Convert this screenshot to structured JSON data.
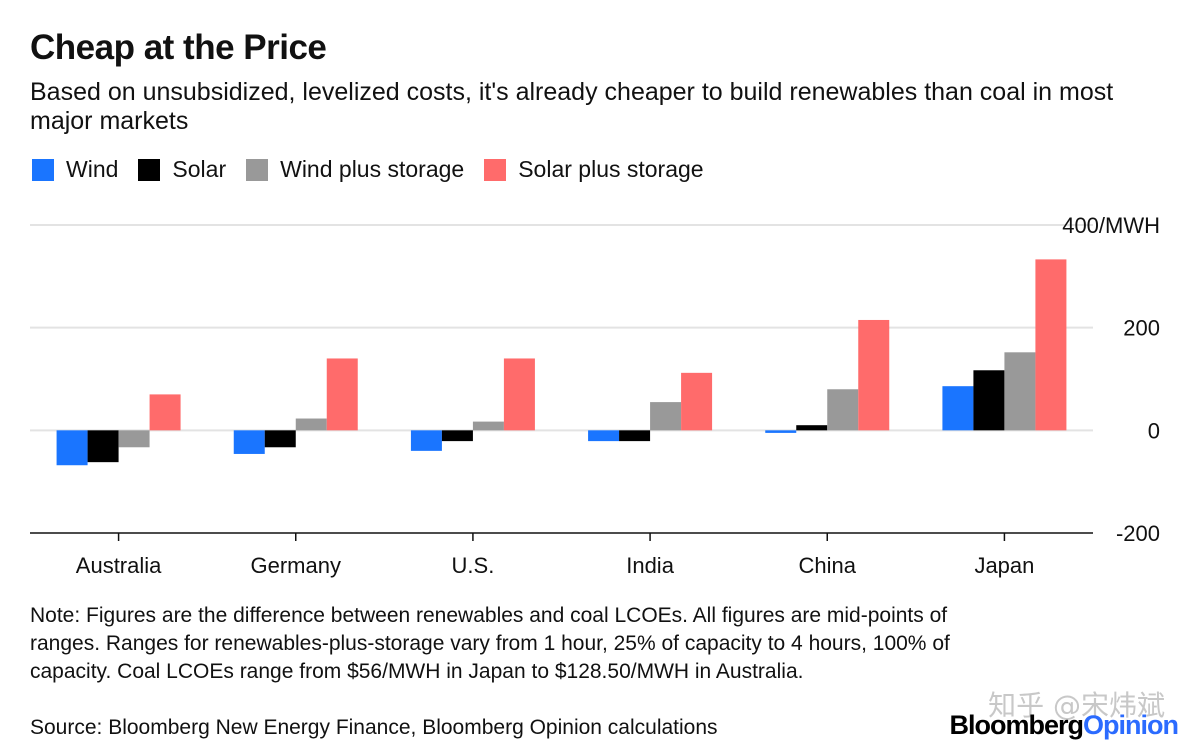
{
  "header": {
    "title": "Cheap at the Price",
    "subtitle": "Based on unsubsidized, levelized costs, it's already cheaper to build renewables than coal in most major markets"
  },
  "legend": [
    {
      "label": "Wind",
      "color": "#1a75ff"
    },
    {
      "label": "Solar",
      "color": "#000000"
    },
    {
      "label": "Wind plus storage",
      "color": "#999999"
    },
    {
      "label": "Solar plus storage",
      "color": "#ff6b6b"
    }
  ],
  "chart_data": {
    "type": "bar",
    "categories": [
      "Australia",
      "Germany",
      "U.S.",
      "India",
      "China",
      "Japan"
    ],
    "series": [
      {
        "name": "Wind",
        "color": "#1a75ff",
        "values": [
          -68,
          -46,
          -40,
          -21,
          -5,
          86
        ]
      },
      {
        "name": "Solar",
        "color": "#000000",
        "values": [
          -62,
          -33,
          -21,
          -21,
          10,
          117
        ]
      },
      {
        "name": "Wind plus storage",
        "color": "#999999",
        "values": [
          -33,
          23,
          17,
          55,
          80,
          152
        ]
      },
      {
        "name": "Solar plus storage",
        "color": "#ff6b6b",
        "values": [
          70,
          140,
          140,
          112,
          215,
          333
        ]
      }
    ],
    "ylim": [
      -200,
      400
    ],
    "yticks": [
      {
        "value": 400,
        "label": "400/MWH"
      },
      {
        "value": 200,
        "label": "200"
      },
      {
        "value": 0,
        "label": "0"
      },
      {
        "value": -200,
        "label": "-200"
      }
    ],
    "title": "Cheap at the Price",
    "xlabel": "",
    "ylabel": ""
  },
  "footer": {
    "note": "Note: Figures are the difference between renewables and coal LCOEs. All figures are mid-points of ranges. Ranges for renewables-plus-storage vary from 1 hour, 25% of capacity to 4 hours, 100% of capacity. Coal LCOEs range from $56/MWH in Japan to $128.50/MWH in Australia.",
    "source": "Source: Bloomberg New Energy Finance, Bloomberg Opinion calculations",
    "brand_part1": "Bloomberg",
    "brand_part2": "Opinion",
    "watermark": "知乎 @宋炜斌"
  }
}
